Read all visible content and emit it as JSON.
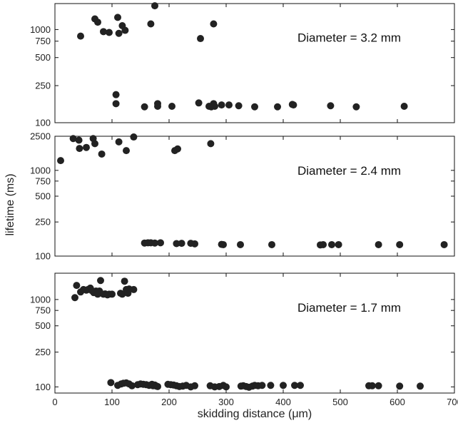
{
  "chart_data": {
    "type": "scatter",
    "xlabel": "skidding distance (μm)",
    "ylabel": "lifetime (ms)",
    "xlim": [
      0,
      700
    ],
    "x_ticks": [
      "0",
      "100",
      "200",
      "300",
      "400",
      "500",
      "600",
      "700"
    ],
    "yscale": "log",
    "grid": false,
    "panels": [
      {
        "annotation": "Diameter = 3.2 mm",
        "ylim": [
          100,
          1900
        ],
        "y_ticks": [
          {
            "value": 100,
            "label": "100"
          },
          {
            "value": 250,
            "label": "250"
          },
          {
            "value": 500,
            "label": "500"
          },
          {
            "value": 750,
            "label": "750"
          },
          {
            "value": 1000,
            "label": "1000"
          }
        ],
        "points": [
          [
            45,
            850
          ],
          [
            70,
            1300
          ],
          [
            75,
            1200
          ],
          [
            85,
            950
          ],
          [
            95,
            930
          ],
          [
            110,
            1350
          ],
          [
            112,
            910
          ],
          [
            118,
            1100
          ],
          [
            123,
            980
          ],
          [
            168,
            1150
          ],
          [
            175,
            1800
          ],
          [
            255,
            800
          ],
          [
            278,
            1150
          ],
          [
            107,
            200
          ],
          [
            107,
            160
          ],
          [
            157,
            148
          ],
          [
            180,
            160
          ],
          [
            180,
            150
          ],
          [
            205,
            150
          ],
          [
            252,
            163
          ],
          [
            270,
            150
          ],
          [
            274,
            148
          ],
          [
            278,
            160
          ],
          [
            280,
            150
          ],
          [
            292,
            155
          ],
          [
            305,
            155
          ],
          [
            322,
            152
          ],
          [
            350,
            148
          ],
          [
            390,
            148
          ],
          [
            416,
            157
          ],
          [
            418,
            155
          ],
          [
            483,
            152
          ],
          [
            528,
            148
          ],
          [
            612,
            150
          ]
        ]
      },
      {
        "annotation": "Diameter = 2.4 mm",
        "ylim": [
          100,
          2500
        ],
        "y_ticks": [
          {
            "value": 100,
            "label": "100"
          },
          {
            "value": 250,
            "label": "250"
          },
          {
            "value": 500,
            "label": "500"
          },
          {
            "value": 750,
            "label": "750"
          },
          {
            "value": 1000,
            "label": "1000"
          },
          {
            "value": 2500,
            "label": "2500"
          }
        ],
        "points": [
          [
            10,
            1300
          ],
          [
            32,
            2350
          ],
          [
            42,
            2250
          ],
          [
            43,
            1800
          ],
          [
            55,
            1850
          ],
          [
            67,
            2350
          ],
          [
            70,
            2050
          ],
          [
            82,
            1550
          ],
          [
            112,
            2150
          ],
          [
            125,
            1700
          ],
          [
            138,
            2450
          ],
          [
            210,
            1700
          ],
          [
            215,
            1780
          ],
          [
            273,
            2050
          ],
          [
            157,
            142
          ],
          [
            163,
            143
          ],
          [
            168,
            143
          ],
          [
            175,
            142
          ],
          [
            185,
            143
          ],
          [
            213,
            140
          ],
          [
            222,
            141
          ],
          [
            238,
            141
          ],
          [
            245,
            139
          ],
          [
            292,
            137
          ],
          [
            295,
            136
          ],
          [
            325,
            136
          ],
          [
            380,
            136
          ],
          [
            465,
            135
          ],
          [
            470,
            136
          ],
          [
            485,
            136
          ],
          [
            497,
            136
          ],
          [
            567,
            136
          ],
          [
            604,
            136
          ],
          [
            682,
            136
          ]
        ]
      },
      {
        "annotation": "Diameter = 1.7 mm",
        "ylim": [
          85,
          2000
        ],
        "y_ticks": [
          {
            "value": 100,
            "label": "100"
          },
          {
            "value": 250,
            "label": "250"
          },
          {
            "value": 500,
            "label": "500"
          },
          {
            "value": 750,
            "label": "750"
          },
          {
            "value": 1000,
            "label": "1000"
          }
        ],
        "points": [
          [
            35,
            1050
          ],
          [
            38,
            1450
          ],
          [
            45,
            1220
          ],
          [
            50,
            1300
          ],
          [
            55,
            1280
          ],
          [
            58,
            1300
          ],
          [
            62,
            1350
          ],
          [
            65,
            1260
          ],
          [
            68,
            1200
          ],
          [
            72,
            1250
          ],
          [
            75,
            1150
          ],
          [
            78,
            1250
          ],
          [
            80,
            1650
          ],
          [
            85,
            1150
          ],
          [
            88,
            1160
          ],
          [
            92,
            1130
          ],
          [
            95,
            1150
          ],
          [
            100,
            1150
          ],
          [
            115,
            1180
          ],
          [
            118,
            1150
          ],
          [
            122,
            1620
          ],
          [
            125,
            1300
          ],
          [
            128,
            1180
          ],
          [
            130,
            1320
          ],
          [
            138,
            1300
          ],
          [
            98,
            112
          ],
          [
            110,
            104
          ],
          [
            116,
            108
          ],
          [
            120,
            110
          ],
          [
            125,
            111
          ],
          [
            130,
            108
          ],
          [
            135,
            103
          ],
          [
            145,
            106
          ],
          [
            150,
            108
          ],
          [
            155,
            107
          ],
          [
            160,
            106
          ],
          [
            165,
            104
          ],
          [
            170,
            107
          ],
          [
            172,
            103
          ],
          [
            175,
            105
          ],
          [
            178,
            102
          ],
          [
            180,
            101
          ],
          [
            198,
            107
          ],
          [
            203,
            106
          ],
          [
            208,
            105
          ],
          [
            213,
            103
          ],
          [
            218,
            101
          ],
          [
            224,
            102
          ],
          [
            230,
            104
          ],
          [
            238,
            100
          ],
          [
            245,
            103
          ],
          [
            272,
            103
          ],
          [
            280,
            100
          ],
          [
            288,
            101
          ],
          [
            295,
            104
          ],
          [
            300,
            100
          ],
          [
            326,
            102
          ],
          [
            330,
            103
          ],
          [
            335,
            101
          ],
          [
            340,
            99
          ],
          [
            346,
            102
          ],
          [
            350,
            104
          ],
          [
            356,
            103
          ],
          [
            363,
            104
          ],
          [
            378,
            104
          ],
          [
            400,
            104
          ],
          [
            420,
            104
          ],
          [
            430,
            104
          ],
          [
            550,
            103
          ],
          [
            556,
            103
          ],
          [
            567,
            103
          ],
          [
            604,
            102
          ],
          [
            640,
            102
          ]
        ]
      }
    ]
  }
}
